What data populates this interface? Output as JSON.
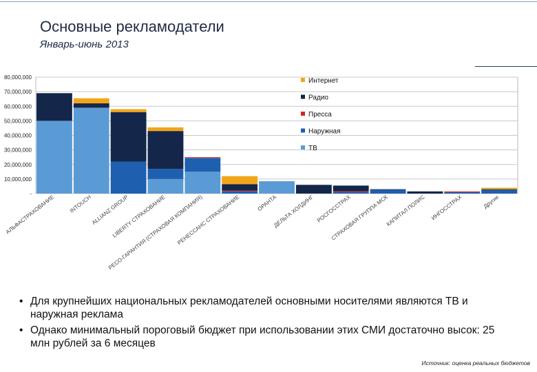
{
  "page": {
    "title": "Основные рекламодатели",
    "subtitle": "Январь-июнь 2013",
    "bullets": [
      "Для крупнейших национальных рекламодателей основными носителями являются ТВ и наружная реклама",
      "Однако минимальный пороговый бюджет при использовании этих СМИ достаточно высок: 25 млн рублей за 6 месяцев"
    ],
    "source": "Источник: оценка реальных бюджетов"
  },
  "chart_data": {
    "type": "stacked-bar",
    "ylim": [
      0,
      80000000
    ],
    "yticks": [
      {
        "value": 0,
        "label": "-"
      },
      {
        "value": 10000000,
        "label": "10,000,000"
      },
      {
        "value": 20000000,
        "label": "20,000,000"
      },
      {
        "value": 30000000,
        "label": "30,000,000"
      },
      {
        "value": 40000000,
        "label": "40,000,000"
      },
      {
        "value": 50000000,
        "label": "50,000,000"
      },
      {
        "value": 60000000,
        "label": "60,000,000"
      },
      {
        "value": 70000000,
        "label": "70,000,000"
      },
      {
        "value": 80000000,
        "label": "80,000,000"
      }
    ],
    "categories": [
      "АЛЬФАСТРАХОВАНИЕ",
      "INTOUCH",
      "ALLIANZ GROUP",
      "LIBERTY СТРАХОВАНИЕ",
      "РЕСО-ГАРАНТИЯ (СТРАХОВАЯ КОМПАНИЯ)",
      "РЕНЕССАНС СТРАХОВАНИЕ",
      "ОРАНТА",
      "ДЕЛЬТА ХОЛДИНГ",
      "РОСГОССТРАХ",
      "СТРАХОВАЯ ГРУППА МСК",
      "КАПИТАЛ ПОЛИС",
      "ИНГОССТРАХ",
      "Другие"
    ],
    "series": [
      {
        "name": "ТВ",
        "color": "#5b9bd5",
        "values": [
          50000000,
          59000000,
          0,
          10000000,
          15000000,
          0,
          8500000,
          0,
          0,
          0,
          0,
          0,
          0
        ]
      },
      {
        "name": "Наружная",
        "color": "#1f5fb0",
        "values": [
          0,
          0,
          22000000,
          7000000,
          9500000,
          1500000,
          0,
          0,
          1000000,
          2500000,
          0,
          1000000,
          2500000
        ]
      },
      {
        "name": "Пресса",
        "color": "#d9261c",
        "values": [
          0,
          0,
          0,
          0,
          500000,
          500000,
          0,
          0,
          500000,
          0,
          0,
          500000,
          0
        ]
      },
      {
        "name": "Радио",
        "color": "#14264a",
        "values": [
          19000000,
          3000000,
          34000000,
          26000000,
          0,
          4500000,
          0,
          6000000,
          4000000,
          500000,
          1500000,
          0,
          500000
        ]
      },
      {
        "name": "Интернет",
        "color": "#f2a51a",
        "values": [
          0,
          3500000,
          2000000,
          2500000,
          0,
          5500000,
          0,
          0,
          0,
          0,
          0,
          0,
          1000000
        ]
      }
    ],
    "legend": [
      "Интернет",
      "Радио",
      "Пресса",
      "Наружная",
      "ТВ"
    ],
    "legend_position": "right",
    "grid": true
  }
}
